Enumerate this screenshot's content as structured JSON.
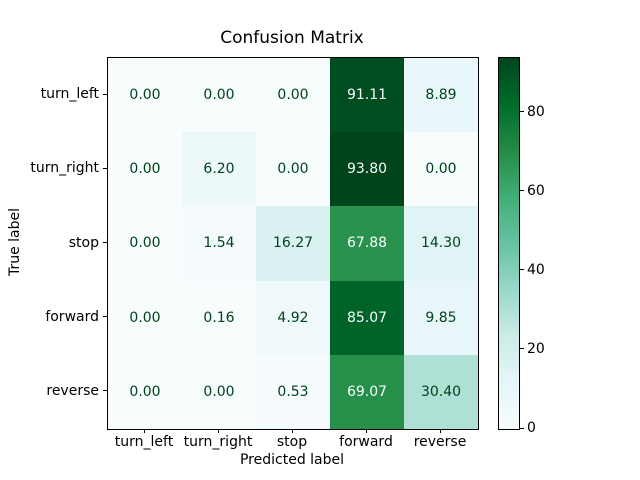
{
  "chart_data": {
    "type": "heatmap",
    "title": "Confusion Matrix",
    "xlabel": "Predicted label",
    "ylabel": "True label",
    "x_categories": [
      "turn_left",
      "turn_right",
      "stop",
      "forward",
      "reverse"
    ],
    "y_categories": [
      "turn_left",
      "turn_right",
      "stop",
      "forward",
      "reverse"
    ],
    "rows": [
      [
        0.0,
        0.0,
        0.0,
        91.11,
        8.89
      ],
      [
        0.0,
        6.2,
        0.0,
        93.8,
        0.0
      ],
      [
        0.0,
        1.54,
        16.27,
        67.88,
        14.3
      ],
      [
        0.0,
        0.16,
        4.92,
        85.07,
        9.85
      ],
      [
        0.0,
        0.0,
        0.53,
        69.07,
        30.4
      ]
    ],
    "value_decimals": 2,
    "vmin": 0,
    "vmax": 93.8,
    "colormap_name": "BuGn",
    "colormap_stops": [
      "#f7fcfd",
      "#e5f5f9",
      "#ccece6",
      "#99d8c9",
      "#66c2a4",
      "#41ae76",
      "#238b45",
      "#006d2c",
      "#00441b"
    ],
    "cell_text_color_dark": "#00441b",
    "cell_text_color_light": "#f7fcfd",
    "colorbar_ticks": [
      0,
      20,
      40,
      60,
      80
    ],
    "legend_position": "right-colorbar",
    "grid": false
  }
}
